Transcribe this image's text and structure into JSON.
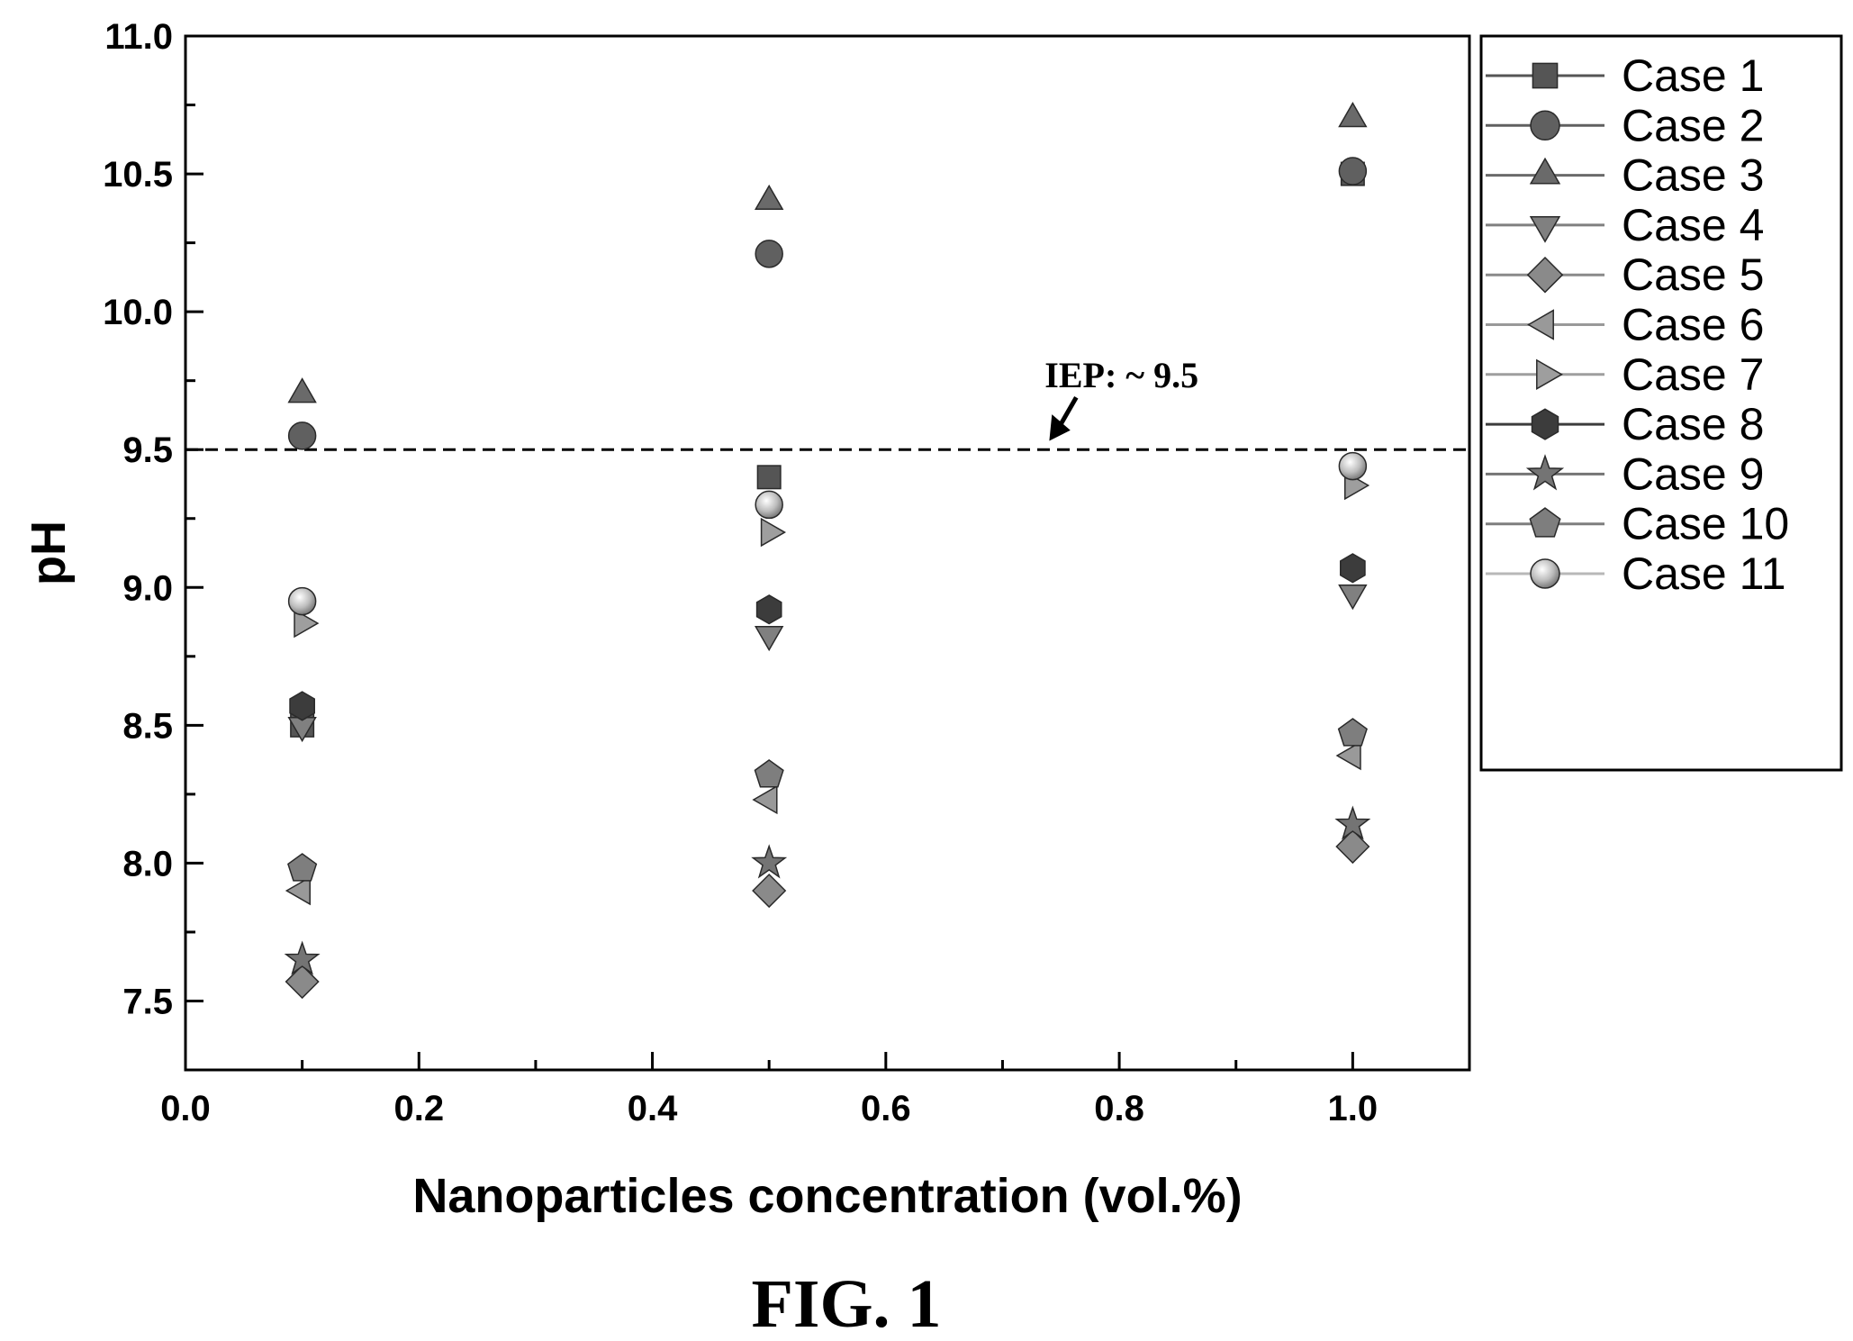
{
  "chart_data": {
    "type": "scatter",
    "xlabel": "Nanoparticles concentration (vol.%)",
    "ylabel": "pH",
    "xlim": [
      0.0,
      1.1
    ],
    "ylim": [
      7.25,
      11.0
    ],
    "x_ticks": [
      "0.0",
      "0.2",
      "0.4",
      "0.6",
      "0.8",
      "1.0"
    ],
    "y_ticks": [
      "7.5",
      "8.0",
      "8.5",
      "9.0",
      "9.5",
      "10.0",
      "10.5",
      "11.0"
    ],
    "grid": false,
    "legend_position": "right outside",
    "x": [
      0.1,
      0.5,
      1.0
    ],
    "series": [
      {
        "name": "Case 1",
        "marker": "square",
        "values": [
          8.5,
          9.4,
          10.5
        ]
      },
      {
        "name": "Case 2",
        "marker": "circle",
        "values": [
          9.55,
          10.21,
          10.51
        ]
      },
      {
        "name": "Case 3",
        "marker": "triangle-up",
        "values": [
          9.7,
          10.4,
          10.7
        ]
      },
      {
        "name": "Case 4",
        "marker": "triangle-down",
        "values": [
          8.5,
          8.83,
          8.98
        ]
      },
      {
        "name": "Case 5",
        "marker": "diamond",
        "values": [
          7.57,
          7.9,
          8.06
        ]
      },
      {
        "name": "Case 6",
        "marker": "triangle-left",
        "values": [
          7.9,
          8.23,
          8.39
        ]
      },
      {
        "name": "Case 7",
        "marker": "triangle-right",
        "values": [
          8.87,
          9.2,
          9.37
        ]
      },
      {
        "name": "Case 8",
        "marker": "hexagon",
        "values": [
          8.57,
          8.92,
          9.07
        ]
      },
      {
        "name": "Case 9",
        "marker": "star",
        "values": [
          7.65,
          8.0,
          8.14
        ]
      },
      {
        "name": "Case 10",
        "marker": "pentagon",
        "values": [
          7.98,
          8.32,
          8.47
        ]
      },
      {
        "name": "Case 11",
        "marker": "sphere",
        "values": [
          8.95,
          9.3,
          9.44
        ]
      }
    ],
    "reference_line": {
      "y": 9.5,
      "style": "dashed",
      "label": "IEP: ~ 9.5",
      "arrow_x": 0.74
    },
    "caption": "FIG. 1"
  },
  "colors": {
    "Case 1": "#555555",
    "Case 2": "#606060",
    "Case 3": "#6a6a6a",
    "Case 4": "#808080",
    "Case 5": "#8a8a8a",
    "Case 6": "#999999",
    "Case 7": "#9e9e9e",
    "Case 8": "#3c3c3c",
    "Case 9": "#747474",
    "Case 10": "#7e7e7e",
    "Case 11": "#b8b8b8",
    "axis": "#000000",
    "background": "#ffffff"
  }
}
